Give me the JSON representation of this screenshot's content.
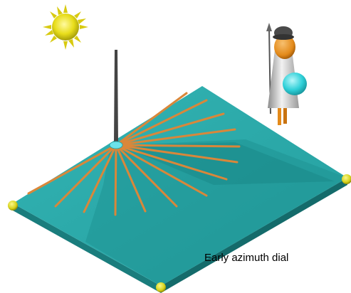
{
  "caption": "Early azimuth dial",
  "colors": {
    "plate_top": "#2aa7a7",
    "plate_shadow": "#1f8f8f",
    "plate_side": "#1c8585",
    "hour_lines": "#d9873a",
    "gnomon": "#3a3a3a",
    "sun": "#e8dd1a",
    "corner_feet": "#d6d21a",
    "observer_body": "#c8c8c8",
    "observer_robe": "#2fd0d8",
    "observer_skin": "#e38a1a"
  },
  "icons": [
    "sun-icon",
    "observer-figure",
    "gnomon",
    "corner-foot"
  ]
}
